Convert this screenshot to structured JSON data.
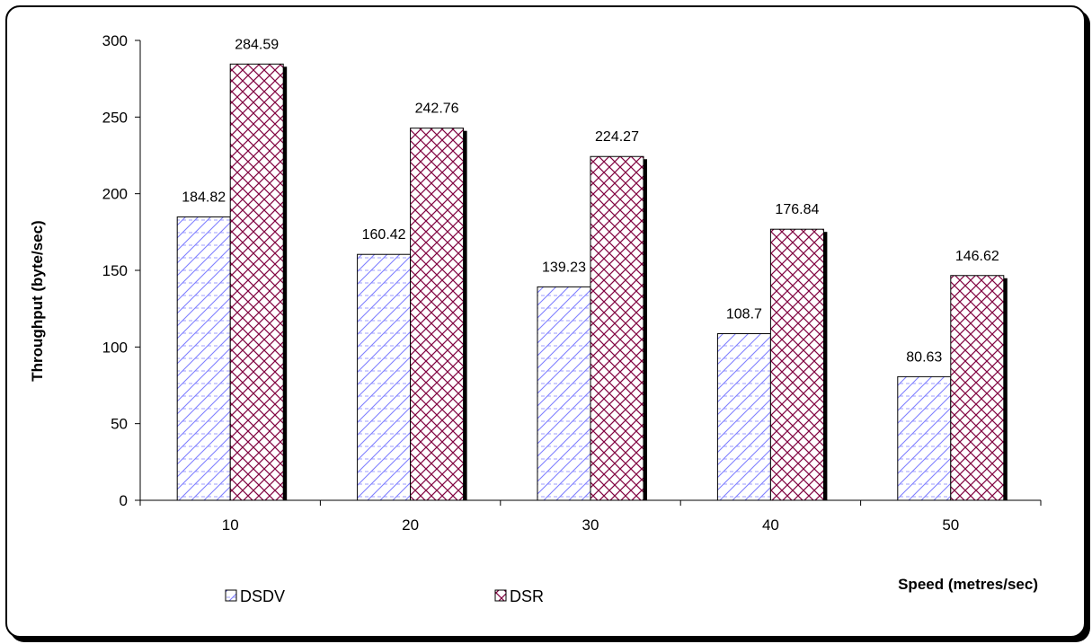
{
  "chart_data": {
    "type": "bar",
    "categories": [
      "10",
      "20",
      "30",
      "40",
      "50"
    ],
    "series": [
      {
        "name": "DSDV",
        "values": [
          184.82,
          160.42,
          139.23,
          108.7,
          80.63
        ]
      },
      {
        "name": "DSR",
        "values": [
          284.59,
          242.76,
          224.27,
          176.84,
          146.62
        ]
      }
    ],
    "data_labels": {
      "DSDV": [
        "184.82",
        "160.42",
        "139.23",
        "108.7",
        "80.63"
      ],
      "DSR": [
        "284.59",
        "242.76",
        "224.27",
        "176.84",
        "146.62"
      ]
    },
    "xlabel": "Speed (metres/sec)",
    "ylabel": "Throughput (byte/sec)",
    "ylim": [
      0,
      300
    ],
    "yticks": [
      "0",
      "50",
      "100",
      "150",
      "200",
      "250",
      "300"
    ],
    "grid": false,
    "legend_position": "bottom",
    "colors": {
      "DSDV": "#8080ff",
      "DSR": "#800040"
    }
  }
}
